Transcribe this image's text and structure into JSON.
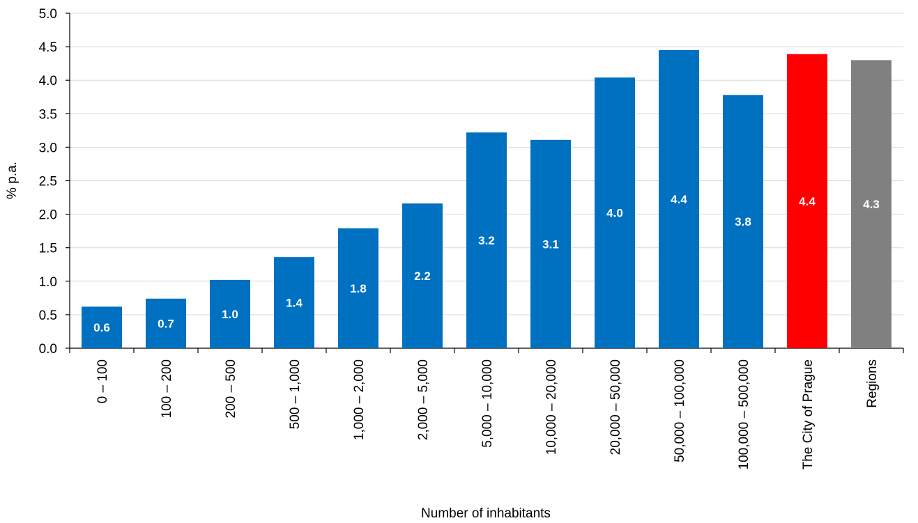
{
  "chart_data": {
    "type": "bar",
    "title": "",
    "title_color": "#0070C0",
    "xlabel": "Number of inhabitants",
    "ylabel": "% p.a.",
    "ylim": [
      0,
      5.0
    ],
    "yticks": [
      "0.0",
      "0.5",
      "1.0",
      "1.5",
      "2.0",
      "2.5",
      "3.0",
      "3.5",
      "4.0",
      "4.5",
      "5.0"
    ],
    "grid": true,
    "categories": [
      "0 – 100",
      "100 – 200",
      "200 – 500",
      "500 – 1,000",
      "1,000 – 2,000",
      "2,000 – 5,000",
      "5,000 – 10,000",
      "10,000 – 20,000",
      "20,000 – 50,000",
      "50,000 – 100,000",
      "100,000 – 500,000",
      "The City of Prague",
      "Regions"
    ],
    "values": [
      0.62,
      0.74,
      1.02,
      1.36,
      1.79,
      2.16,
      3.22,
      3.11,
      4.04,
      4.45,
      3.78,
      4.39,
      4.3
    ],
    "data_labels": [
      "0.6",
      "0.7",
      "1.0",
      "1.4",
      "1.8",
      "2.2",
      "3.2",
      "3.1",
      "4.0",
      "4.4",
      "3.8",
      "4.4",
      "4.3"
    ],
    "bar_colors": [
      "#0070C0",
      "#0070C0",
      "#0070C0",
      "#0070C0",
      "#0070C0",
      "#0070C0",
      "#0070C0",
      "#0070C0",
      "#0070C0",
      "#0070C0",
      "#0070C0",
      "#FF0000",
      "#808080"
    ]
  }
}
